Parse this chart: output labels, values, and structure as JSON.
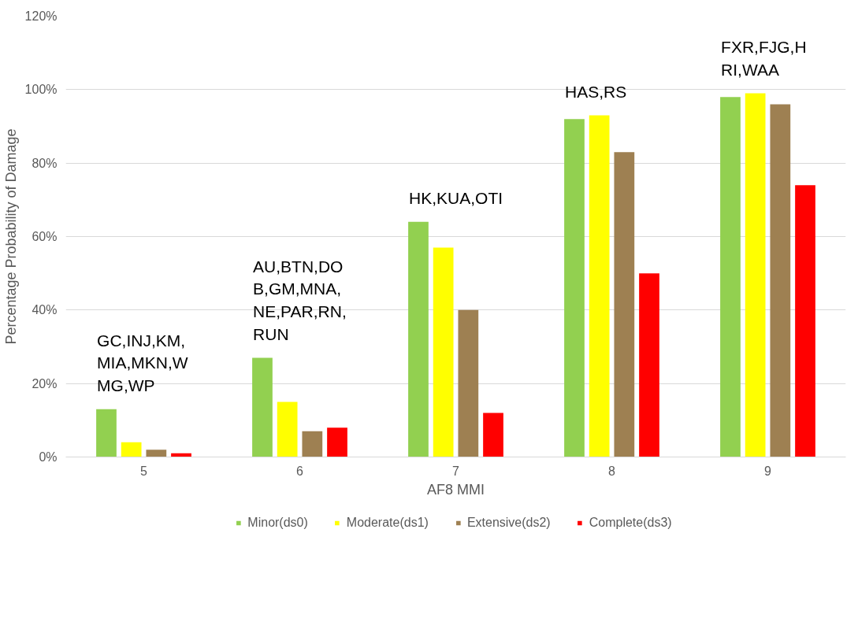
{
  "chart_data": {
    "type": "bar",
    "categories": [
      "5",
      "6",
      "7",
      "8",
      "9"
    ],
    "xlabel": "AF8 MMI",
    "ylabel": "Percentage Probability of Damage",
    "series": [
      {
        "name": "Minor(ds0)",
        "color": "#92d050",
        "values": [
          13,
          27,
          64,
          92,
          98
        ]
      },
      {
        "name": "Moderate(ds1)",
        "color": "#ffff00",
        "values": [
          4,
          15,
          57,
          93,
          99
        ]
      },
      {
        "name": "Extensive(ds2)",
        "color": "#9e8052",
        "values": [
          2,
          7,
          40,
          83,
          96
        ]
      },
      {
        "name": "Complete(ds3)",
        "color": "#ff0000",
        "values": [
          1,
          8,
          12,
          50,
          74
        ]
      }
    ],
    "ylim": [
      0,
      120
    ],
    "yticks": [
      {
        "value": 0,
        "label": "0%"
      },
      {
        "value": 20,
        "label": "20%"
      },
      {
        "value": 40,
        "label": "40%"
      },
      {
        "value": 60,
        "label": "60%"
      },
      {
        "value": 80,
        "label": "80%"
      },
      {
        "value": 100,
        "label": "100%"
      },
      {
        "value": 120,
        "label": "120%"
      }
    ],
    "grid": "y",
    "legend": "bottom",
    "annotations": [
      "GC,INJ,KM,MIA,MKN,WMG,WP",
      "AU,BTN,DOB,GM,MNA,NE,PAR,RN,RUN",
      "HK,KUA,OTI",
      "HAS,RS",
      "FXR,FJG,HRI,WAA"
    ]
  }
}
